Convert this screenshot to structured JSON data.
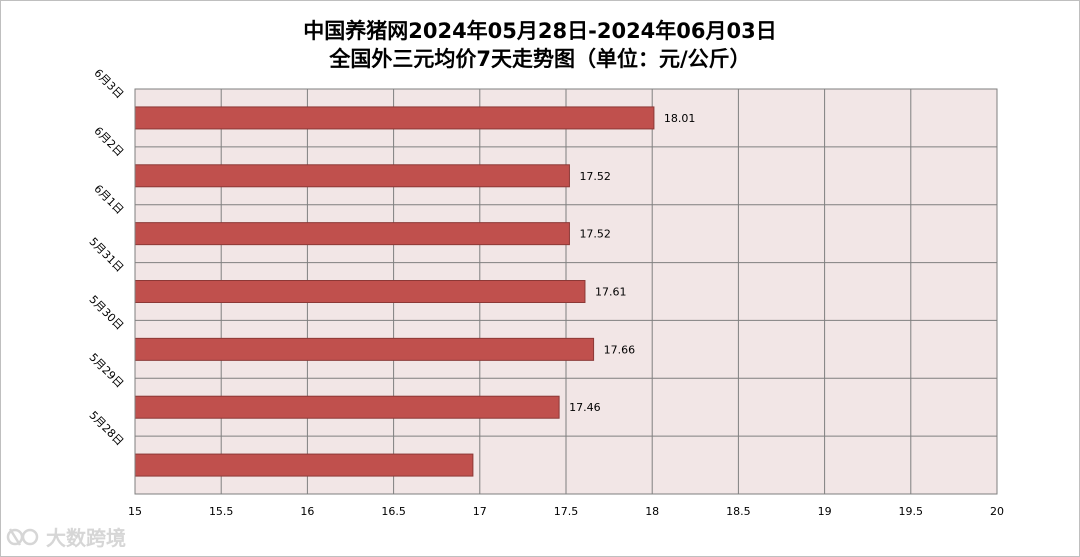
{
  "chart_data": {
    "type": "bar",
    "orientation": "horizontal",
    "title": "中国养猪网2024年05月28日-2024年06月03日",
    "subtitle": "全国外三元均价7天走势图（单位：元/公斤）",
    "categories": [
      "6月3日",
      "6月2日",
      "6月1日",
      "5月31日",
      "5月30日",
      "5月29日",
      "5月28日"
    ],
    "values": [
      18.01,
      17.52,
      17.52,
      17.61,
      17.66,
      17.46,
      16.96
    ],
    "value_labels": [
      "18.01",
      "17.52",
      "17.52",
      "17.61",
      "17.66",
      "17.46",
      ""
    ],
    "xlim": [
      15,
      20
    ],
    "xticks": [
      "15",
      "15.5",
      "16",
      "16.5",
      "17",
      "17.5",
      "18",
      "18.5",
      "19",
      "19.5",
      "20"
    ],
    "grid": true,
    "colors": {
      "bar_fill": "#c0504d",
      "bar_stroke": "#8c3836",
      "plot_background": "#f2e6e6",
      "grid": "#7f7f7f"
    }
  },
  "watermark": {
    "text": "大数跨境",
    "icon": "logo-icon"
  }
}
